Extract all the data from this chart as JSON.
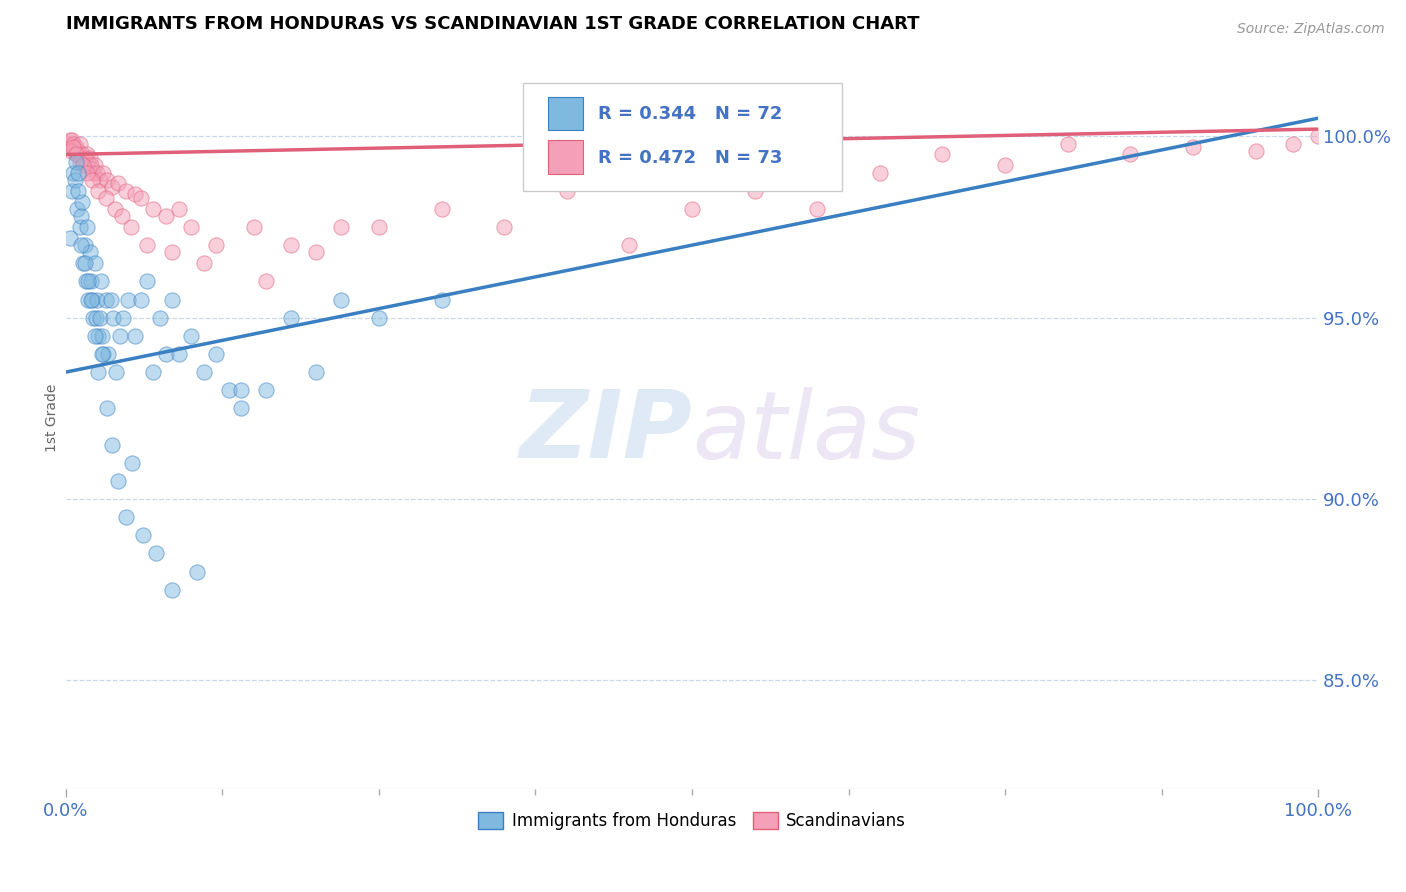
{
  "title": "IMMIGRANTS FROM HONDURAS VS SCANDINAVIAN 1ST GRADE CORRELATION CHART",
  "source": "Source: ZipAtlas.com",
  "ylabel": "1st Grade",
  "xlim": [
    0.0,
    100.0
  ],
  "ylim": [
    82.0,
    102.5
  ],
  "ytick_labels": [
    "85.0%",
    "90.0%",
    "95.0%",
    "100.0%"
  ],
  "ytick_values": [
    85.0,
    90.0,
    95.0,
    100.0
  ],
  "legend_blue_label": "Immigrants from Honduras",
  "legend_pink_label": "Scandinavians",
  "r_blue": "R = 0.344",
  "n_blue": "N = 72",
  "r_pink": "R = 0.472",
  "n_pink": "N = 73",
  "blue_color": "#7fb9e0",
  "pink_color": "#f4a0b8",
  "blue_line_color": "#3a7fc1",
  "pink_line_color": "#e0607a",
  "watermark_zip": "ZIP",
  "watermark_atlas": "atlas",
  "grid_color": "#c8d8ea",
  "axis_label_color": "#4472c4",
  "tick_color": "#4472c4",
  "blue_line_x0": 0.0,
  "blue_line_y0": 93.5,
  "blue_line_x1": 100.0,
  "blue_line_y1": 100.5,
  "pink_line_x0": 0.0,
  "pink_line_y0": 99.5,
  "pink_line_x1": 100.0,
  "pink_line_y1": 100.2,
  "blue_scatter_x": [
    0.3,
    0.5,
    0.6,
    0.7,
    0.8,
    0.9,
    1.0,
    1.1,
    1.2,
    1.3,
    1.4,
    1.5,
    1.6,
    1.7,
    1.8,
    1.9,
    2.0,
    2.1,
    2.2,
    2.3,
    2.4,
    2.5,
    2.6,
    2.7,
    2.8,
    2.9,
    3.0,
    3.2,
    3.4,
    3.6,
    3.8,
    4.0,
    4.3,
    4.6,
    5.0,
    5.5,
    6.0,
    6.5,
    7.0,
    7.5,
    8.0,
    8.5,
    9.0,
    10.0,
    11.0,
    12.0,
    13.0,
    14.0,
    16.0,
    18.0,
    20.0,
    22.0,
    25.0,
    1.0,
    1.2,
    1.5,
    1.8,
    2.0,
    2.3,
    2.6,
    2.9,
    3.3,
    3.7,
    4.2,
    4.8,
    5.3,
    6.2,
    7.2,
    8.5,
    10.5,
    14.0,
    30.0
  ],
  "blue_scatter_y": [
    97.2,
    98.5,
    99.0,
    98.8,
    99.3,
    98.0,
    99.0,
    97.5,
    97.8,
    98.2,
    96.5,
    97.0,
    96.0,
    97.5,
    95.5,
    96.8,
    96.0,
    95.5,
    95.0,
    96.5,
    95.0,
    95.5,
    94.5,
    95.0,
    96.0,
    94.5,
    94.0,
    95.5,
    94.0,
    95.5,
    95.0,
    93.5,
    94.5,
    95.0,
    95.5,
    94.5,
    95.5,
    96.0,
    93.5,
    95.0,
    94.0,
    95.5,
    94.0,
    94.5,
    93.5,
    94.0,
    93.0,
    92.5,
    93.0,
    95.0,
    93.5,
    95.5,
    95.0,
    98.5,
    97.0,
    96.5,
    96.0,
    95.5,
    94.5,
    93.5,
    94.0,
    92.5,
    91.5,
    90.5,
    89.5,
    91.0,
    89.0,
    88.5,
    87.5,
    88.0,
    93.0,
    95.5
  ],
  "pink_scatter_x": [
    0.2,
    0.3,
    0.4,
    0.5,
    0.6,
    0.7,
    0.8,
    0.9,
    1.0,
    1.1,
    1.2,
    1.3,
    1.4,
    1.5,
    1.6,
    1.7,
    1.8,
    1.9,
    2.0,
    2.1,
    2.2,
    2.3,
    2.5,
    2.7,
    3.0,
    3.3,
    3.7,
    4.2,
    4.8,
    5.5,
    6.0,
    7.0,
    8.0,
    9.0,
    10.0,
    12.0,
    15.0,
    18.0,
    20.0,
    25.0,
    30.0,
    35.0,
    40.0,
    45.0,
    50.0,
    55.0,
    60.0,
    65.0,
    70.0,
    75.0,
    80.0,
    85.0,
    90.0,
    95.0,
    98.0,
    100.0,
    0.4,
    0.6,
    0.8,
    1.1,
    1.4,
    1.7,
    2.1,
    2.6,
    3.2,
    3.9,
    4.5,
    5.2,
    6.5,
    8.5,
    11.0,
    16.0,
    22.0
  ],
  "pink_scatter_y": [
    99.8,
    99.9,
    99.7,
    99.9,
    99.8,
    99.6,
    99.7,
    99.5,
    99.6,
    99.8,
    99.4,
    99.5,
    99.3,
    99.4,
    99.2,
    99.5,
    99.3,
    99.4,
    99.2,
    99.1,
    99.0,
    99.2,
    99.0,
    98.8,
    99.0,
    98.8,
    98.6,
    98.7,
    98.5,
    98.4,
    98.3,
    98.0,
    97.8,
    98.0,
    97.5,
    97.0,
    97.5,
    97.0,
    96.8,
    97.5,
    98.0,
    97.5,
    98.5,
    97.0,
    98.0,
    98.5,
    98.0,
    99.0,
    99.5,
    99.2,
    99.8,
    99.5,
    99.7,
    99.6,
    99.8,
    100.0,
    99.6,
    99.7,
    99.5,
    99.3,
    99.2,
    99.0,
    98.8,
    98.5,
    98.3,
    98.0,
    97.8,
    97.5,
    97.0,
    96.8,
    96.5,
    96.0,
    97.5
  ]
}
